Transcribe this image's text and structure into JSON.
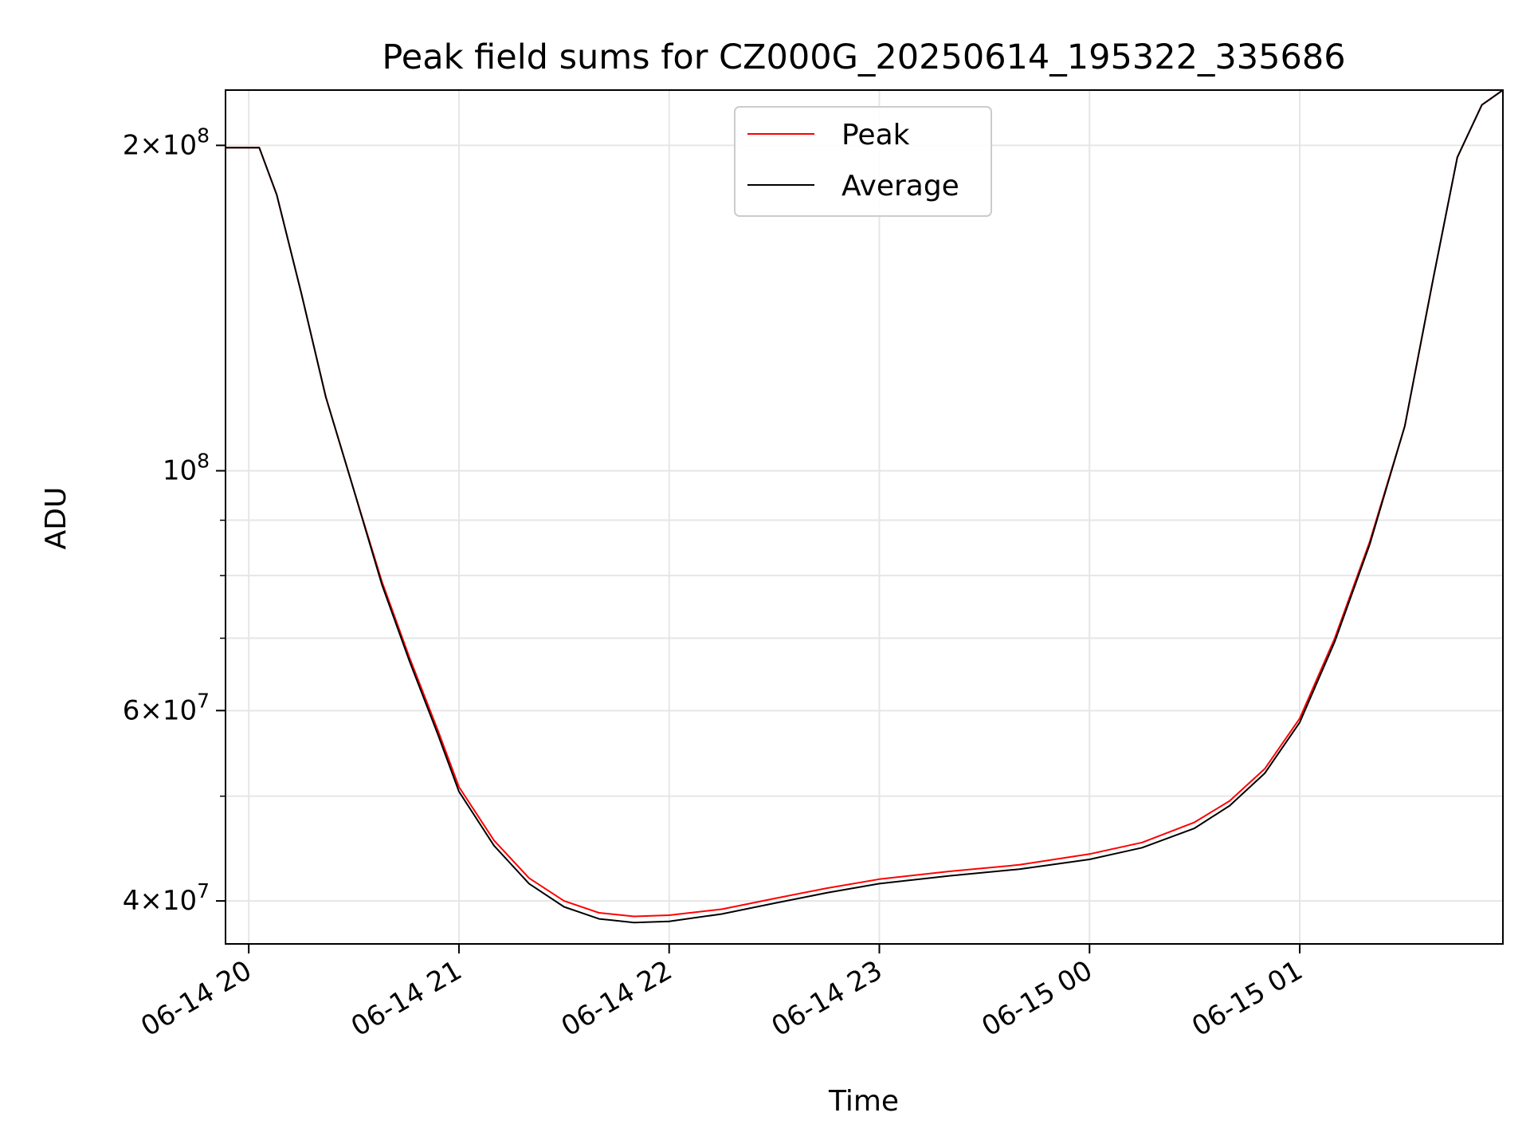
{
  "chart_data": {
    "type": "line",
    "title": "Peak field sums for CZ000G_20250614_195322_335686",
    "xlabel": "Time",
    "ylabel": "ADU",
    "yscale": "log",
    "xlim": [
      "2025-06-14T19:53:22",
      "2025-06-15T01:58:00"
    ],
    "ylim": [
      36500000,
      225000000
    ],
    "x_ticks": [
      {
        "value": "2025-06-14T20:00",
        "label": "06-14 20"
      },
      {
        "value": "2025-06-14T21:00",
        "label": "06-14 21"
      },
      {
        "value": "2025-06-14T22:00",
        "label": "06-14 22"
      },
      {
        "value": "2025-06-14T23:00",
        "label": "06-14 23"
      },
      {
        "value": "2025-06-15T00:00",
        "label": "06-15 00"
      },
      {
        "value": "2025-06-15T01:00",
        "label": "06-15 01"
      }
    ],
    "y_major_ticks": [
      {
        "value": 40000000,
        "mantissa": "4",
        "exponent": "7"
      },
      {
        "value": 60000000,
        "mantissa": "6",
        "exponent": "7"
      },
      {
        "value": 100000000,
        "mantissa": "",
        "exponent": "8"
      },
      {
        "value": 200000000,
        "mantissa": "2",
        "exponent": "8"
      }
    ],
    "y_minor_ticks": [
      50000000,
      70000000,
      80000000,
      90000000
    ],
    "grid": true,
    "legend_position": "top-center",
    "series": [
      {
        "name": "Peak",
        "color": "#ff0000",
        "x": [
          "2025-06-14T19:53",
          "2025-06-14T20:01",
          "2025-06-14T20:03",
          "2025-06-14T20:08",
          "2025-06-14T20:15",
          "2025-06-14T20:22",
          "2025-06-14T20:30",
          "2025-06-14T20:38",
          "2025-06-14T20:46",
          "2025-06-14T20:54",
          "2025-06-14T21:00",
          "2025-06-14T21:10",
          "2025-06-14T21:20",
          "2025-06-14T21:30",
          "2025-06-14T21:40",
          "2025-06-14T21:50",
          "2025-06-14T22:00",
          "2025-06-14T22:15",
          "2025-06-14T22:30",
          "2025-06-14T22:45",
          "2025-06-14T23:00",
          "2025-06-14T23:20",
          "2025-06-14T23:40",
          "2025-06-15T00:00",
          "2025-06-15T00:15",
          "2025-06-15T00:30",
          "2025-06-15T00:40",
          "2025-06-15T00:50",
          "2025-06-15T01:00",
          "2025-06-15T01:10",
          "2025-06-15T01:20",
          "2025-06-15T01:30",
          "2025-06-15T01:38",
          "2025-06-15T01:45",
          "2025-06-15T01:52",
          "2025-06-15T01:58"
        ],
        "y": [
          199000000,
          199000000,
          199000000,
          180000000,
          146000000,
          117000000,
          96000000,
          79000000,
          67000000,
          57500000,
          51000000,
          45500000,
          42000000,
          40000000,
          39000000,
          38700000,
          38800000,
          39300000,
          40200000,
          41100000,
          41900000,
          42600000,
          43200000,
          44200000,
          45300000,
          47300000,
          49500000,
          53000000,
          59000000,
          70000000,
          86000000,
          110000000,
          150000000,
          195000000,
          218000000,
          225000000
        ]
      },
      {
        "name": "Average",
        "color": "#000000",
        "x": [
          "2025-06-14T19:53",
          "2025-06-14T20:01",
          "2025-06-14T20:03",
          "2025-06-14T20:08",
          "2025-06-14T20:15",
          "2025-06-14T20:22",
          "2025-06-14T20:30",
          "2025-06-14T20:38",
          "2025-06-14T20:46",
          "2025-06-14T20:54",
          "2025-06-14T21:00",
          "2025-06-14T21:10",
          "2025-06-14T21:20",
          "2025-06-14T21:30",
          "2025-06-14T21:40",
          "2025-06-14T21:50",
          "2025-06-14T22:00",
          "2025-06-14T22:15",
          "2025-06-14T22:30",
          "2025-06-14T22:45",
          "2025-06-14T23:00",
          "2025-06-14T23:20",
          "2025-06-14T23:40",
          "2025-06-15T00:00",
          "2025-06-15T00:15",
          "2025-06-15T00:30",
          "2025-06-15T00:40",
          "2025-06-15T00:50",
          "2025-06-15T01:00",
          "2025-06-15T01:10",
          "2025-06-15T01:20",
          "2025-06-15T01:30",
          "2025-06-15T01:38",
          "2025-06-15T01:45",
          "2025-06-15T01:52",
          "2025-06-15T01:58"
        ],
        "y": [
          199000000,
          199000000,
          199000000,
          180000000,
          146000000,
          117000000,
          96000000,
          78500000,
          66500000,
          57000000,
          50500000,
          45000000,
          41500000,
          39500000,
          38500000,
          38200000,
          38300000,
          38900000,
          39800000,
          40700000,
          41500000,
          42200000,
          42800000,
          43700000,
          44800000,
          46700000,
          49000000,
          52500000,
          58500000,
          69500000,
          85500000,
          110000000,
          150000000,
          195000000,
          218000000,
          225000000
        ]
      }
    ]
  }
}
